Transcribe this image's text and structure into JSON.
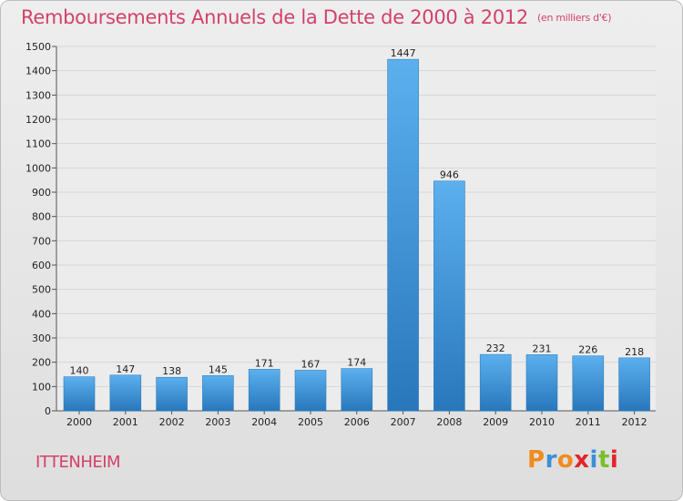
{
  "chart_data": {
    "type": "bar",
    "title": "Remboursements Annuels de la Dette de 2000 à 2012",
    "unit_label": "(en milliers d'€)",
    "categories": [
      "2000",
      "2001",
      "2002",
      "2003",
      "2004",
      "2005",
      "2006",
      "2007",
      "2008",
      "2009",
      "2010",
      "2011",
      "2012"
    ],
    "values": [
      140,
      147,
      138,
      145,
      171,
      167,
      174,
      1447,
      946,
      232,
      231,
      226,
      218
    ],
    "ylim": [
      0,
      1500
    ],
    "yticks": [
      0,
      100,
      200,
      300,
      400,
      500,
      600,
      700,
      800,
      900,
      1000,
      1100,
      1200,
      1300,
      1400,
      1500
    ],
    "grid": true,
    "xlabel": "",
    "ylabel": ""
  },
  "commune": "ITTENHEIM",
  "logo": {
    "letters": [
      "P",
      "r",
      "o",
      "x",
      "i",
      "t",
      "i"
    ],
    "colors": [
      "#f08b1d",
      "#3a8fd6",
      "#f08b1d",
      "#e0262b",
      "#3a8fd6",
      "#7bbf2a",
      "#e0262b"
    ]
  },
  "colors": {
    "title": "#d2426a",
    "bar_light": "#5aacea",
    "bar_dark": "#2a7bbf"
  }
}
